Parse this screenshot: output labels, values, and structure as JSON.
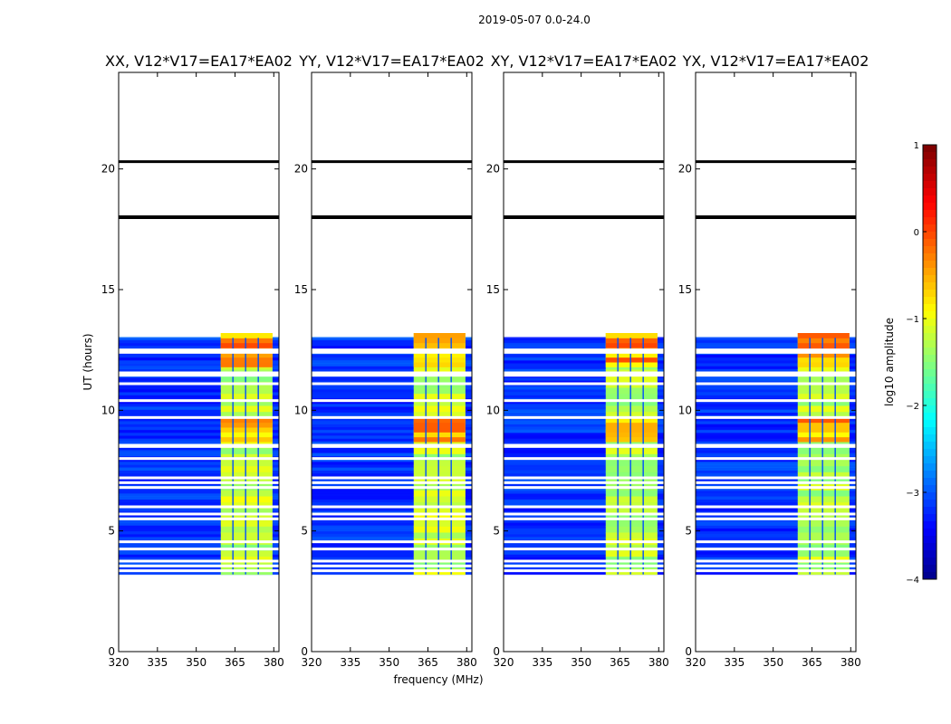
{
  "figure": {
    "suptitle": "2019-05-07 0.0-24.0"
  },
  "chart_data": {
    "type": "heatmap",
    "xlabel": "frequency (MHz)",
    "ylabel": "UT (hours)",
    "xlim": [
      320,
      382
    ],
    "ylim": [
      0,
      24
    ],
    "x_ticks": [
      320,
      335,
      350,
      365,
      380
    ],
    "y_ticks": [
      0,
      5,
      10,
      15,
      20
    ],
    "panels": [
      {
        "title": "XX, V12*V17=EA17*EA02",
        "band_start_mhz": 359.5,
        "band_end_mhz": 379.5
      },
      {
        "title": "YY, V12*V17=EA17*EA02",
        "band_start_mhz": 359.5,
        "band_end_mhz": 379.5
      },
      {
        "title": "XY, V12*V17=EA17*EA02",
        "band_start_mhz": 359.5,
        "band_end_mhz": 379.5
      },
      {
        "title": "YX, V12*V17=EA17*EA02",
        "band_start_mhz": 359.5,
        "band_end_mhz": 379.5
      }
    ],
    "data_time_range_hours": [
      3.2,
      13.0
    ],
    "bright_time_ranges_hours": [
      [
        8.7,
        9.5
      ],
      [
        11.8,
        13.0
      ]
    ],
    "band_gaps_mhz": [
      364.2,
      369.1,
      374.0
    ],
    "gap_rows_hours": [
      3.35,
      3.55,
      3.75,
      4.25,
      4.55,
      5.5,
      5.7,
      6.0,
      6.8,
      7.0,
      7.2,
      8.0,
      8.5,
      8.55,
      9.7,
      10.4,
      11.1,
      11.45,
      11.55,
      12.4,
      12.5
    ],
    "marker_lines_hours": [
      20.3,
      18.0
    ],
    "colorbar": {
      "label": "log10 amplitude",
      "min": -4,
      "max": 1,
      "ticks": [
        -4,
        -3,
        -2,
        -1,
        0,
        1
      ],
      "tick_labels": [
        "−4",
        "−3",
        "−2",
        "−1",
        "0",
        "1"
      ],
      "colormap": "jet"
    }
  }
}
